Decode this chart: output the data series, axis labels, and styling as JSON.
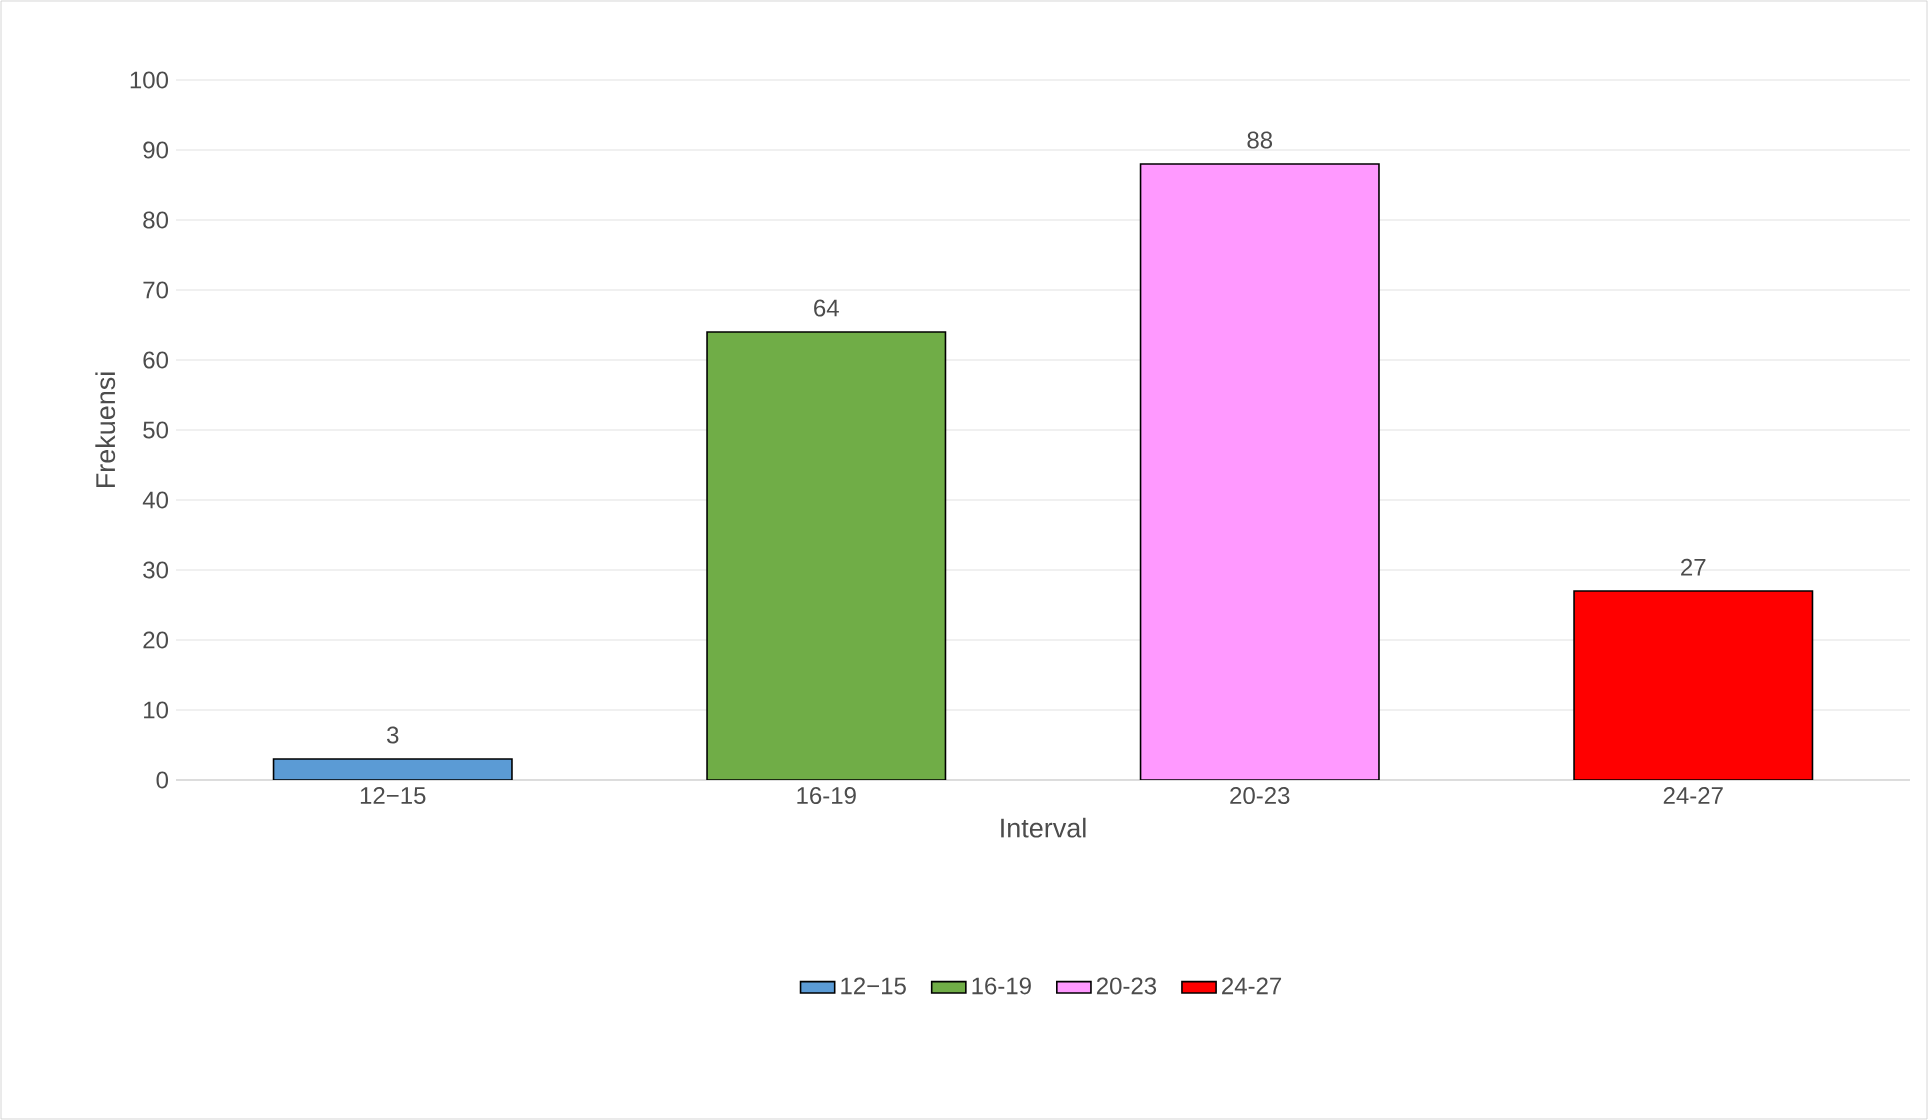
{
  "chart_data": {
    "type": "bar",
    "xlabel": "Interval",
    "ylabel": "Frekuensi",
    "categories": [
      "12−15",
      "16-19",
      "20-23",
      "24-27"
    ],
    "series": [
      {
        "name": "12−15",
        "color": "#5b9bd5",
        "values": [
          3,
          null,
          null,
          null
        ]
      },
      {
        "name": "16-19",
        "color": "#70ad47",
        "values": [
          null,
          64,
          null,
          null
        ]
      },
      {
        "name": "20-23",
        "color": "#ff99ff",
        "values": [
          null,
          null,
          88,
          null
        ]
      },
      {
        "name": "24-27",
        "color": "#ff0000",
        "values": [
          null,
          null,
          null,
          27
        ]
      }
    ],
    "ylim": [
      0,
      100
    ],
    "yticks": [
      0,
      10,
      20,
      30,
      40,
      50,
      60,
      70,
      80,
      90,
      100
    ],
    "grid": "y",
    "legend": "bottom",
    "data_labels": true
  }
}
